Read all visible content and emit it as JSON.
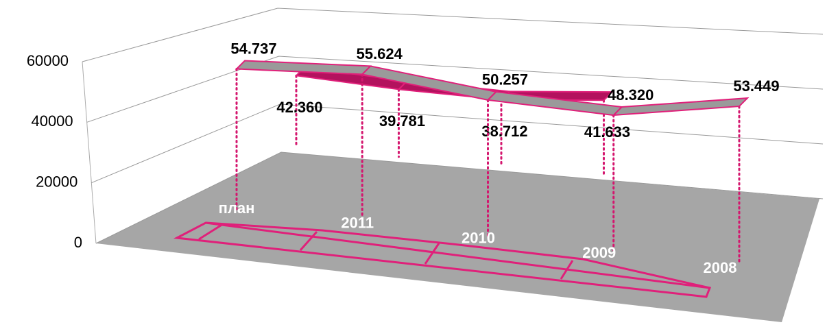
{
  "chart_data": {
    "type": "line3d",
    "categories": [
      "план",
      "2011",
      "2010",
      "2009",
      "2008"
    ],
    "series": [
      {
        "color": "#9a9a9a",
        "values": [
          54737,
          55624,
          50257,
          48320,
          53449
        ],
        "value_labels": [
          "54.737",
          "55.624",
          "50.257",
          "48.320",
          "53.449"
        ]
      },
      {
        "color": "#b3125e",
        "values": [
          42360,
          39781,
          38712,
          41633,
          null
        ],
        "value_labels": [
          "42.360",
          "39.781",
          "38.712",
          "41.633",
          null
        ]
      }
    ],
    "ylim": [
      0,
      60000
    ],
    "yticks": [
      0,
      20000,
      40000,
      60000
    ],
    "grid": true
  }
}
